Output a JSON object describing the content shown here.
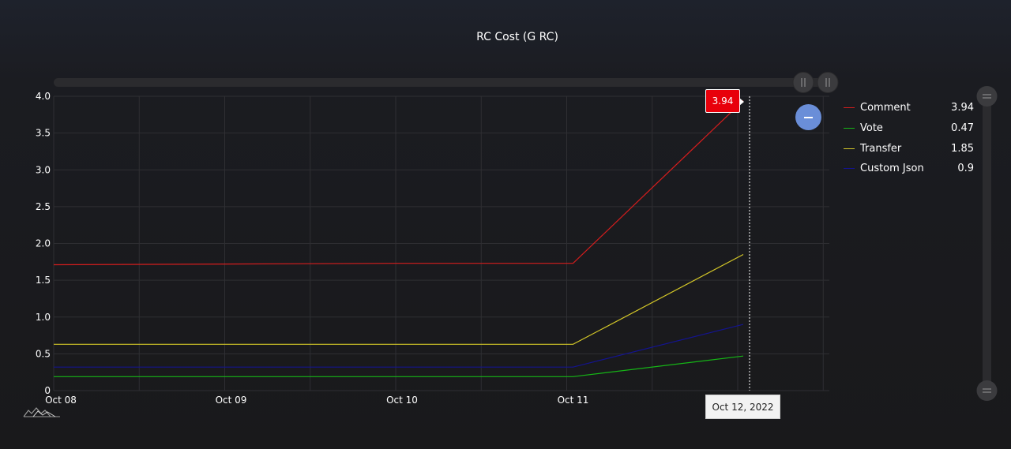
{
  "colors": {
    "comment": "#d61d1d",
    "vote": "#16b616",
    "transfer": "#d4c728",
    "custom_json": "#14148f",
    "grid": "#2f2f33",
    "axis_text": "#ffffff"
  },
  "icons": {
    "logo": "amcharts-logo-icon",
    "zoom_out": "zoom-out-minus-icon",
    "scrollbar_grip": "scrollbar-grip-icon"
  },
  "chart_data": {
    "type": "line",
    "title": "RC Cost (G RC)",
    "xlabel": "",
    "ylabel": "",
    "x": [
      "Oct 08",
      "Oct 09",
      "Oct 10",
      "Oct 11",
      "Oct 12, 2022"
    ],
    "x_tick_labels": [
      "Oct 08",
      "Oct 09",
      "Oct 10",
      "Oct 11"
    ],
    "y_tick_labels": [
      "0",
      "0.5",
      "1.0",
      "1.5",
      "2.0",
      "2.5",
      "3.0",
      "3.5",
      "4.0"
    ],
    "ylim": [
      0,
      4.0
    ],
    "grid": true,
    "legend_position": "right",
    "series": [
      {
        "name": "Comment",
        "key": "comment",
        "values": [
          1.71,
          1.72,
          1.73,
          1.73,
          3.94
        ],
        "legend_value": "3.94"
      },
      {
        "name": "Vote",
        "key": "vote",
        "values": [
          0.19,
          0.19,
          0.19,
          0.19,
          0.47
        ],
        "legend_value": "0.47"
      },
      {
        "name": "Transfer",
        "key": "transfer",
        "values": [
          0.63,
          0.63,
          0.63,
          0.63,
          1.85
        ],
        "legend_value": "1.85"
      },
      {
        "name": "Custom Json",
        "key": "custom_json",
        "values": [
          0.32,
          0.32,
          0.32,
          0.32,
          0.9
        ],
        "legend_value": "0.9"
      }
    ],
    "cursor": {
      "x_label": "Oct 12, 2022",
      "value_label": "3.94"
    }
  }
}
